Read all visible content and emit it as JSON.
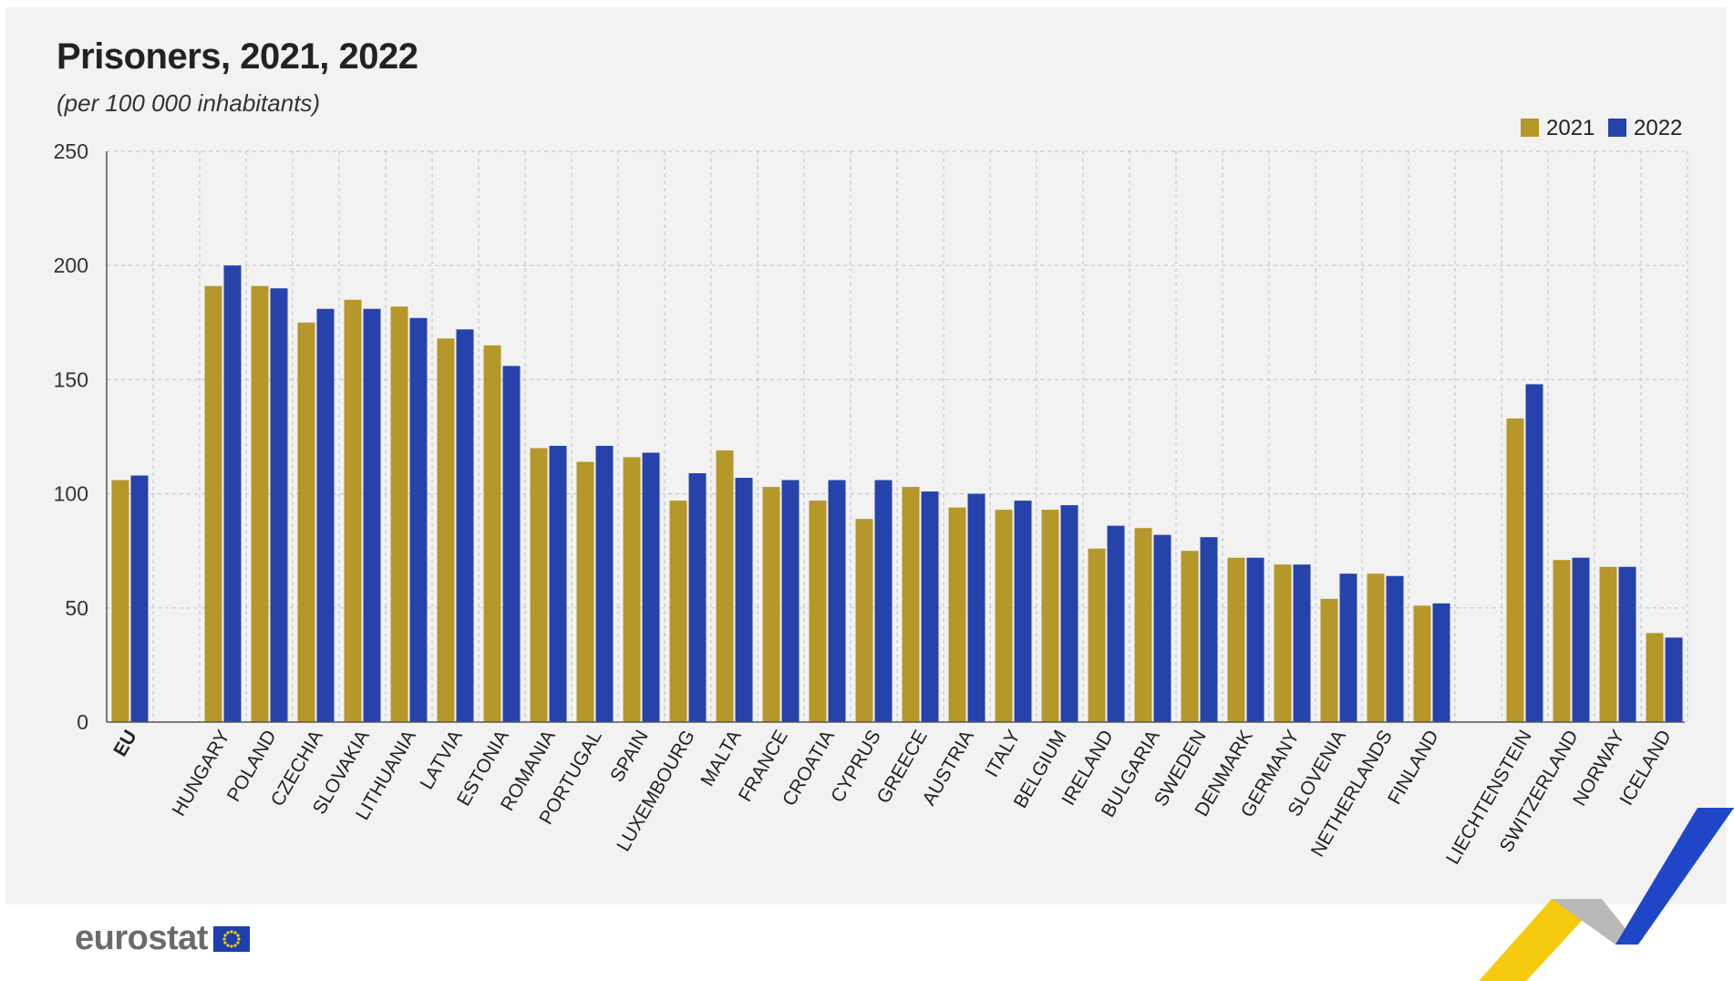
{
  "title": "Prisoners, 2021, 2022",
  "subtitle": "(per 100 000 inhabitants)",
  "logo_text": "eurostat",
  "icons": [
    "eu-flag-icon",
    "eurostat-corner-chevron-icon"
  ],
  "chart_data": {
    "type": "bar",
    "title": "Prisoners, 2021, 2022",
    "subtitle": "(per 100 000 inhabitants)",
    "ylim": [
      0,
      250
    ],
    "yticks": [
      0,
      50,
      100,
      150,
      200,
      250
    ],
    "grid": true,
    "legend_position": "top-right",
    "colors": {
      "2021": "#b5972a",
      "2022": "#2643ac"
    },
    "groups": [
      [
        "EU"
      ],
      [
        "HUNGARY",
        "POLAND",
        "CZECHIA",
        "SLOVAKIA",
        "LITHUANIA",
        "LATVIA",
        "ESTONIA",
        "ROMANIA",
        "PORTUGAL",
        "SPAIN",
        "LUXEMBOURG",
        "MALTA",
        "FRANCE",
        "CROATIA",
        "CYPRUS",
        "GREECE",
        "AUSTRIA",
        "ITALY",
        "BELGIUM",
        "IRELAND",
        "BULGARIA",
        "SWEDEN",
        "DENMARK",
        "GERMANY",
        "SLOVENIA",
        "NETHERLANDS",
        "FINLAND"
      ],
      [
        "LIECHTENSTEIN",
        "SWITZERLAND",
        "NORWAY",
        "ICELAND"
      ]
    ],
    "categories": [
      "EU",
      "HUNGARY",
      "POLAND",
      "CZECHIA",
      "SLOVAKIA",
      "LITHUANIA",
      "LATVIA",
      "ESTONIA",
      "ROMANIA",
      "PORTUGAL",
      "SPAIN",
      "LUXEMBOURG",
      "MALTA",
      "FRANCE",
      "CROATIA",
      "CYPRUS",
      "GREECE",
      "AUSTRIA",
      "ITALY",
      "BELGIUM",
      "IRELAND",
      "BULGARIA",
      "SWEDEN",
      "DENMARK",
      "GERMANY",
      "SLOVENIA",
      "NETHERLANDS",
      "FINLAND",
      "LIECHTENSTEIN",
      "SWITZERLAND",
      "NORWAY",
      "ICELAND"
    ],
    "series": [
      {
        "name": "2021",
        "values": [
          106,
          191,
          191,
          175,
          185,
          182,
          168,
          165,
          120,
          114,
          116,
          97,
          119,
          103,
          97,
          89,
          103,
          94,
          93,
          93,
          76,
          85,
          75,
          72,
          69,
          54,
          65,
          51,
          133,
          71,
          68,
          39
        ]
      },
      {
        "name": "2022",
        "values": [
          108,
          200,
          190,
          181,
          181,
          177,
          172,
          156,
          121,
          121,
          118,
          109,
          107,
          106,
          106,
          106,
          101,
          100,
          97,
          95,
          86,
          82,
          81,
          72,
          69,
          65,
          64,
          52,
          148,
          72,
          68,
          37
        ]
      }
    ]
  }
}
